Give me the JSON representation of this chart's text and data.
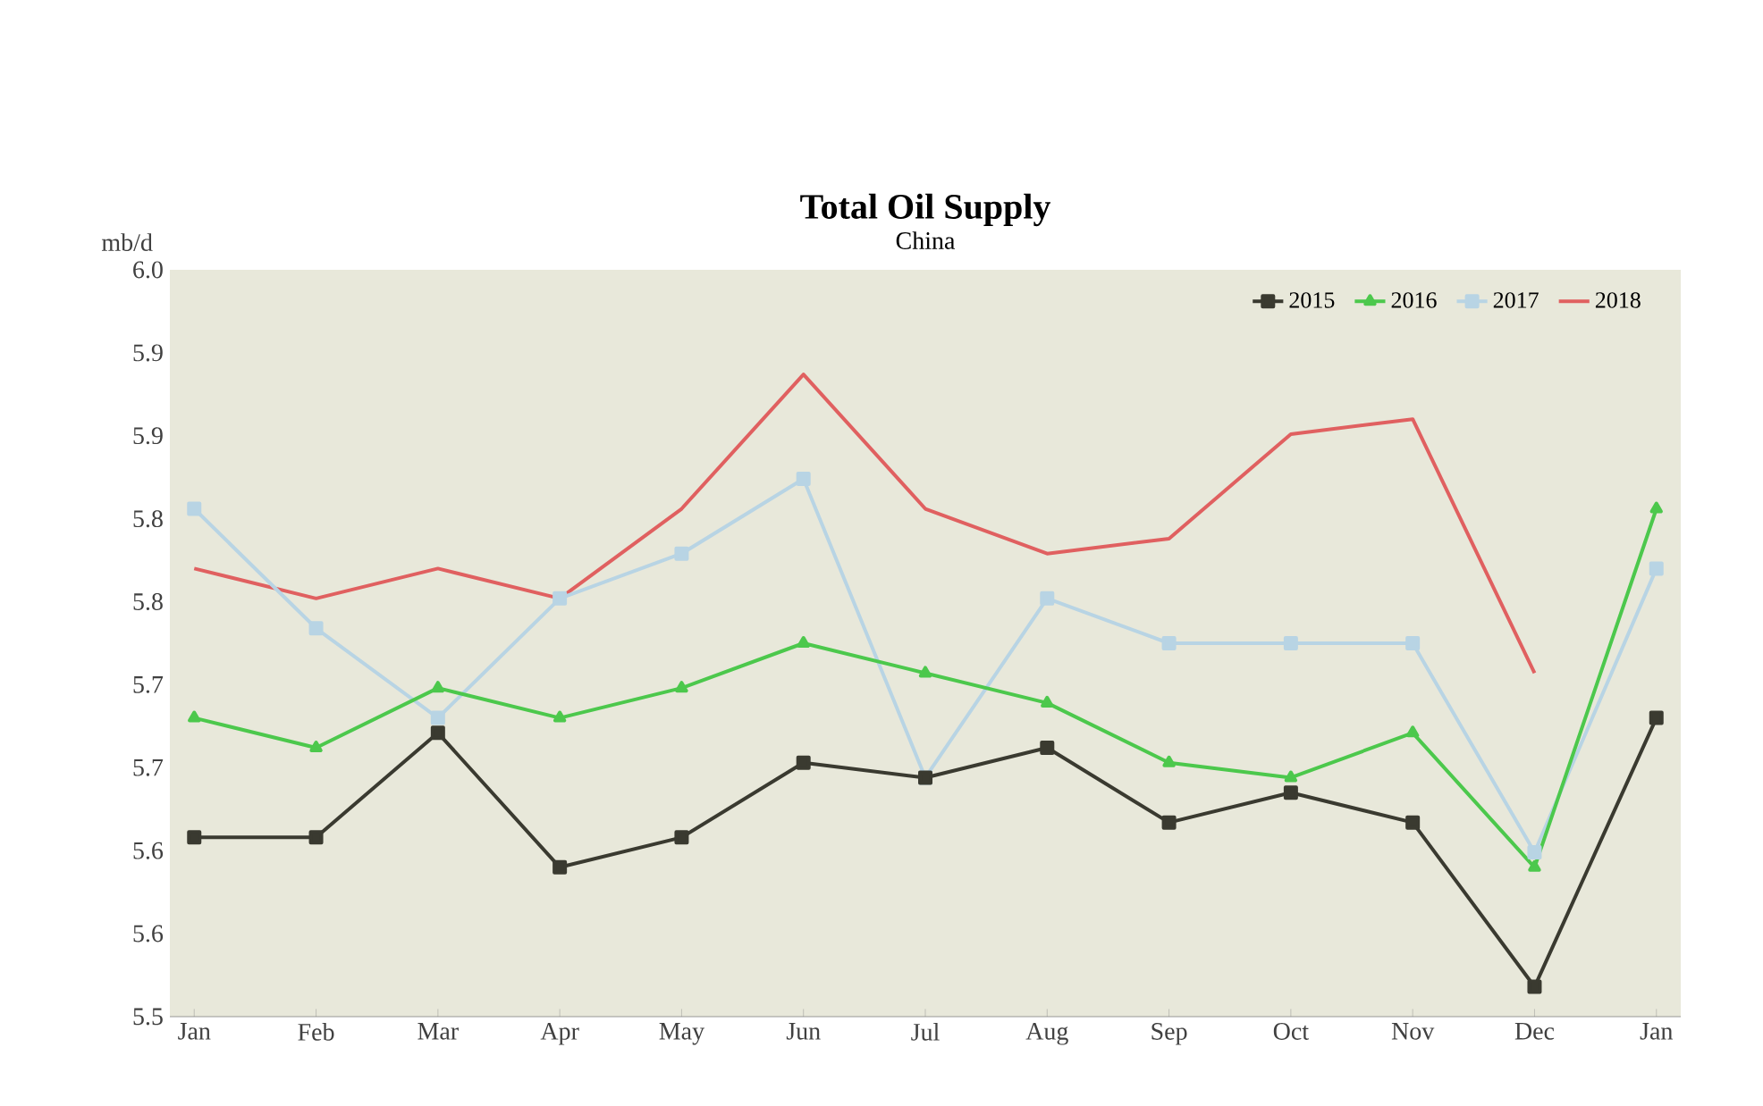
{
  "chart_data": {
    "type": "line",
    "title": "Total Oil Supply",
    "subtitle": "China",
    "ylabel": "mb/d",
    "categories": [
      "Jan",
      "Feb",
      "Mar",
      "Apr",
      "May",
      "Jun",
      "Jul",
      "Aug",
      "Sep",
      "Oct",
      "Nov",
      "Dec",
      "Jan"
    ],
    "ylim": [
      5.5,
      6.0
    ],
    "yticks": [
      {
        "value": 5.5,
        "label": "5.5"
      },
      {
        "value": 5.5556,
        "label": "5.6"
      },
      {
        "value": 5.6111,
        "label": "5.6"
      },
      {
        "value": 5.6667,
        "label": "5.7"
      },
      {
        "value": 5.7222,
        "label": "5.7"
      },
      {
        "value": 5.7778,
        "label": "5.8"
      },
      {
        "value": 5.8333,
        "label": "5.8"
      },
      {
        "value": 5.8889,
        "label": "5.9"
      },
      {
        "value": 5.9444,
        "label": "5.9"
      },
      {
        "value": 6.0,
        "label": "6.0"
      }
    ],
    "legend": "top right",
    "series": [
      {
        "name": "2015",
        "color": "#3a3a30",
        "marker": "square",
        "values": [
          5.62,
          5.62,
          5.69,
          5.6,
          5.62,
          5.67,
          5.66,
          5.68,
          5.63,
          5.65,
          5.63,
          5.52,
          5.7
        ]
      },
      {
        "name": "2016",
        "color": "#4cc84c",
        "marker": "triangle",
        "values": [
          5.7,
          5.68,
          5.72,
          5.7,
          5.72,
          5.75,
          5.73,
          5.71,
          5.67,
          5.66,
          5.69,
          5.6,
          5.84
        ]
      },
      {
        "name": "2017",
        "color": "#b8d4e4",
        "marker": "square",
        "values": [
          5.84,
          5.76,
          5.7,
          5.78,
          5.81,
          5.86,
          5.66,
          5.78,
          5.75,
          5.75,
          5.75,
          5.61,
          5.8
        ]
      },
      {
        "name": "2018",
        "color": "#e06060",
        "marker": "none",
        "values": [
          5.8,
          5.78,
          5.8,
          5.78,
          5.84,
          5.93,
          5.84,
          5.81,
          5.82,
          5.89,
          5.9,
          5.73,
          null
        ]
      }
    ]
  }
}
